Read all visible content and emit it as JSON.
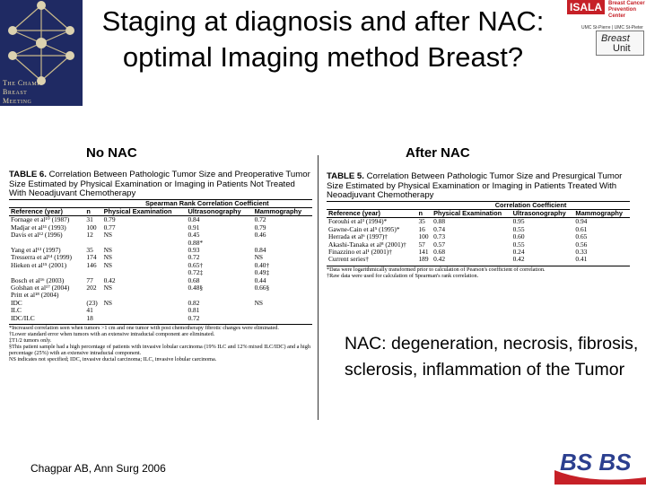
{
  "title": "Staging at diagnosis and after NAC: optimal Imaging method Breast?",
  "logo_left": {
    "lines": [
      "The Champ",
      "Breast",
      "Meeting"
    ]
  },
  "logo_right": {
    "brand": "ISALA",
    "center": "Breast Cancer Prevention Center",
    "cities": "UMC St-Pierre | UMC St-Pieter",
    "unit_line1": "Breast",
    "unit_line2": "Unit"
  },
  "left": {
    "label": "No NAC",
    "table_title": "TABLE 6.",
    "caption": "Correlation Between Pathologic Tumor Size and Preoperative Tumor Size Estimated by Physical Examination or Imaging in Patients Not Treated With Neoadjuvant Chemotherapy",
    "spanner": "Spearman Rank Correlation Coefficient",
    "headers": [
      "Reference (year)",
      "n",
      "Physical Examination",
      "Ultrasonography",
      "Mammography"
    ],
    "rows": [
      [
        "Fornage et al¹⁰ (1987)",
        "31",
        "0.79",
        "0.84",
        "0.72"
      ],
      [
        "Madjar et al¹¹ (1993)",
        "100",
        "0.77",
        "0.91",
        "0.79"
      ],
      [
        "Davis et al¹² (1996)",
        "12",
        "NS",
        "0.45",
        "0.46"
      ],
      [
        "",
        "",
        "",
        "0.88*",
        ""
      ],
      [
        "Yang et al¹³ (1997)",
        "35",
        "NS",
        "0.93",
        "0.84"
      ],
      [
        "Tresserra et al¹⁴ (1999)",
        "174",
        "NS",
        "0.72",
        "NS"
      ],
      [
        "Hieken et al¹⁵ (2001)",
        "146",
        "NS",
        "0.65†",
        "0.40†"
      ],
      [
        "",
        "",
        "",
        "0.72‡",
        "0.49‡"
      ],
      [
        "Bosch et al¹⁶ (2003)",
        "77",
        "0.42",
        "0.68",
        "0.44"
      ],
      [
        "Golshan et al¹⁷ (2004)",
        "202",
        "NS",
        "0.48§",
        "0.66§"
      ],
      [
        "Pritt et al¹⁸ (2004)",
        "",
        "",
        "",
        ""
      ],
      [
        "IDC",
        "(23)",
        "NS",
        "0.82",
        "NS"
      ],
      [
        "ILC",
        "41",
        "",
        "0.81",
        ""
      ],
      [
        "IDC/ILC",
        "18",
        "",
        "0.72",
        ""
      ]
    ],
    "notes": [
      "*Increased correlation seen when tumors >1 cm and one tumor with post chemotherapy fibrotic changes were eliminated.",
      "†Lower standard error when tumors with an extensive intraductal component are eliminated.",
      "‡T1/2 tumors only.",
      "§This patient sample had a high percentage of patients with invasive lobular carcinoma (19% ILC and 12% mixed ILC/IDC) and a high percentage (25%) with an extensive intraductal component.",
      "NS indicates not specified; IDC, invasive ductal carcinoma; ILC, invasive lobular carcinoma."
    ]
  },
  "right": {
    "label": "After NAC",
    "table_title": "TABLE 5.",
    "caption": "Correlation Between Pathologic Tumor Size and Presurgical Tumor Size Estimated by Physical Examination or Imaging in Patients Treated With Neoadjuvant Chemotherapy",
    "spanner": "Correlation Coefficient",
    "headers": [
      "Reference (year)",
      "n",
      "Physical Examination",
      "Ultrasonography",
      "Mammography"
    ],
    "rows": [
      [
        "Forouhi et al³ (1994)*",
        "35",
        "0.88",
        "0.95",
        "0.94"
      ],
      [
        "Gawne-Cain et al⁵ (1995)*",
        "16",
        "0.74",
        "0.55",
        "0.61"
      ],
      [
        "Herrada et al⁶ (1997)†",
        "100",
        "0.73",
        "0.60",
        "0.65"
      ],
      [
        "Akashi-Tanaka et al⁸ (2001)†",
        "57",
        "0.57",
        "0.55",
        "0.56"
      ],
      [
        "Finazzino et al¹ (2001)†",
        "141",
        "0.68",
        "0.24",
        "0.33"
      ],
      [
        "Current series†",
        "189",
        "0.42",
        "0.42",
        "0.41"
      ]
    ],
    "notes": [
      "*Data were logarithmically transformed prior to calculation of Pearson's coefficient of correlation.",
      "†Raw data were used for calculation of Spearman's rank correlation."
    ]
  },
  "description": "NAC: degeneration, necrosis, fibrosis, sclerosis, inflammation of the Tumor",
  "citation": "Chagpar AB, Ann Surg 2006",
  "logo_bottom": {
    "text": "BS BS"
  },
  "colors": {
    "left_logo_bg": "#1f2a63",
    "brand_red": "#c62027",
    "bsbs_blue": "#2b3f8f"
  }
}
